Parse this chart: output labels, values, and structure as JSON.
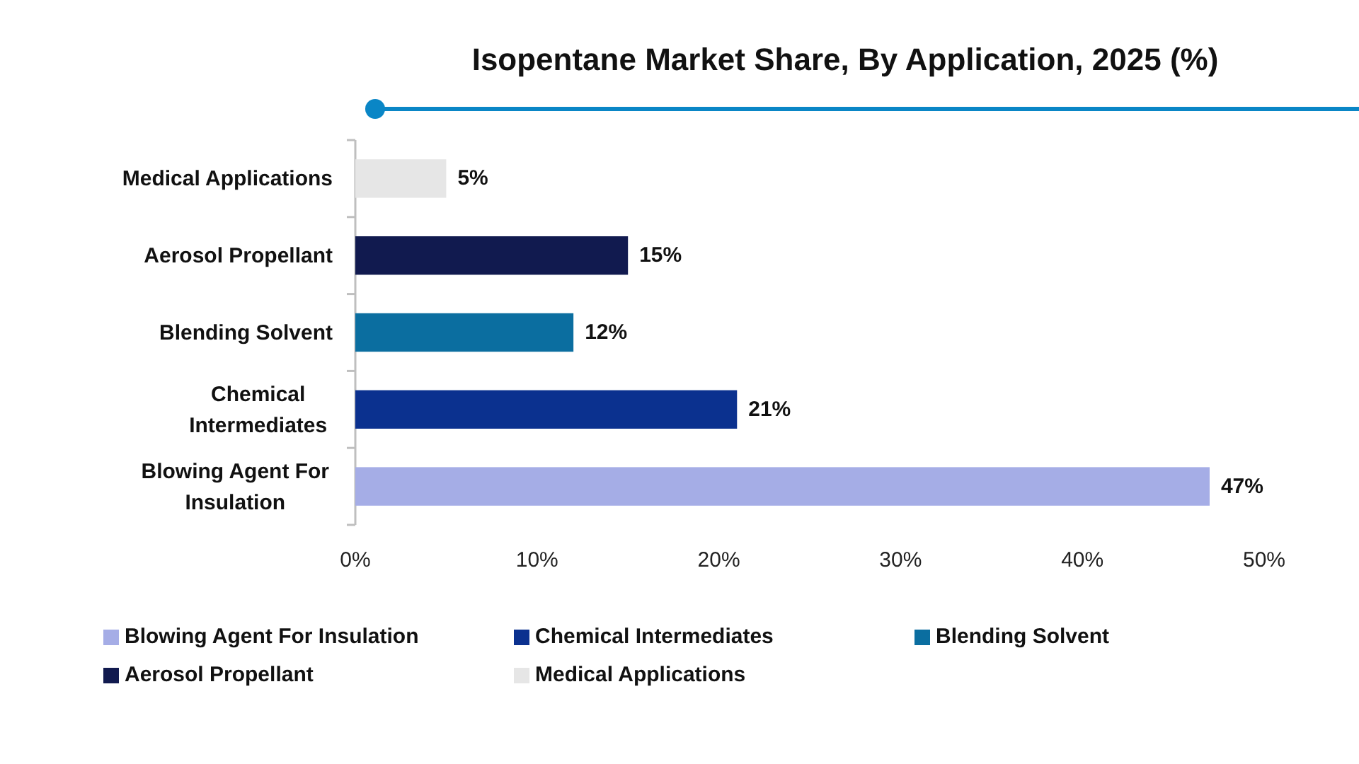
{
  "chart_data": {
    "type": "bar",
    "orientation": "horizontal",
    "stacked": true,
    "title": "Isopentane Market Share, By Application, 2025 (%)",
    "categories": [
      "Medical Applications",
      "Aerosol Propellant",
      "Blending Solvent",
      "Chemical Intermediates",
      "Blowing Agent For Insulation"
    ],
    "series": [
      {
        "name": "Blowing Agent For Insulation",
        "color": "#a5ade6",
        "values": [
          null,
          null,
          null,
          null,
          47
        ],
        "value_labels": [
          null,
          null,
          null,
          null,
          "47%"
        ]
      },
      {
        "name": "Chemical Intermediates",
        "color": "#0b318f",
        "values": [
          null,
          null,
          null,
          21,
          null
        ],
        "value_labels": [
          null,
          null,
          null,
          "21%",
          null
        ]
      },
      {
        "name": "Blending Solvent",
        "color": "#0b6ea0",
        "values": [
          null,
          null,
          12,
          null,
          null
        ],
        "value_labels": [
          null,
          null,
          "12%",
          null,
          null
        ]
      },
      {
        "name": "Aerosol Propellant",
        "color": "#111a4f",
        "values": [
          null,
          15,
          null,
          null,
          null
        ],
        "value_labels": [
          null,
          "15%",
          null,
          null,
          null
        ]
      },
      {
        "name": "Medical Applications",
        "color": "#e6e6e6",
        "values": [
          5,
          null,
          null,
          null,
          null
        ],
        "value_labels": [
          "5%",
          null,
          null,
          null,
          null
        ]
      }
    ],
    "xlim": [
      0,
      50
    ],
    "xticks": [
      {
        "value": 0,
        "label": "0%"
      },
      {
        "value": 10,
        "label": "10%"
      },
      {
        "value": 20,
        "label": "20%"
      },
      {
        "value": 30,
        "label": "30%"
      },
      {
        "value": 40,
        "label": "40%"
      },
      {
        "value": 50,
        "label": "50%"
      }
    ],
    "legend": "bottom"
  }
}
